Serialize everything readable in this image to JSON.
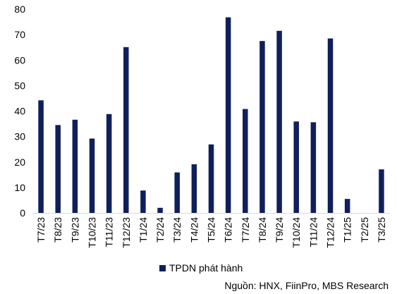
{
  "chart_data": {
    "type": "bar",
    "categories": [
      "T7/23",
      "T8/23",
      "T9/23",
      "T10/23",
      "T11/23",
      "T12/23",
      "T1/24",
      "T2/24",
      "T3/24",
      "T4/24",
      "T5/24",
      "T6/24",
      "T7/24",
      "T8/24",
      "T9/24",
      "T10/24",
      "T11/24",
      "T12/24",
      "T1/25",
      "T2/25",
      "T3/25"
    ],
    "series": [
      {
        "name": "TPDN phát hành",
        "values": [
          44.2,
          34.5,
          36.6,
          29.2,
          38.8,
          65.1,
          8.8,
          2.0,
          15.9,
          19.1,
          26.9,
          76.8,
          40.8,
          67.5,
          71.5,
          35.9,
          35.6,
          68.5,
          5.5,
          0.0,
          17.1
        ]
      }
    ],
    "ylim": [
      0,
      80
    ],
    "yticks": [
      0,
      10,
      20,
      30,
      40,
      50,
      60,
      70,
      80
    ],
    "grid": false,
    "legend_position": "bottom",
    "colors": {
      "bar": "#0f1f5c"
    }
  },
  "source_note": "Nguồn: HNX, FiinPro, MBS Research"
}
